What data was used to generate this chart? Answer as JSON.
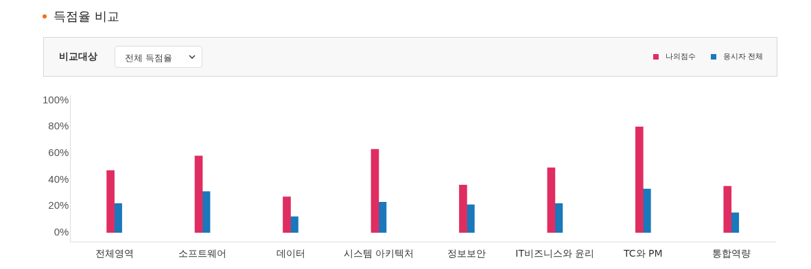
{
  "chart_data": {
    "type": "bar",
    "title": "득점율 비교",
    "annotations": [
      "비교대상",
      "전체 득점율"
    ],
    "categories": [
      "전체영역",
      "소프트웨어",
      "데이터",
      "시스템 아키텍처",
      "정보보안",
      "IT비즈니스와 윤리",
      "TC와 PM",
      "통합역량"
    ],
    "series": [
      {
        "name": "나의점수",
        "color": "#e02d61",
        "values": [
          47,
          58,
          27,
          63,
          36,
          49,
          80,
          35
        ]
      },
      {
        "name": "응시자 전체",
        "color": "#1a78bb",
        "values": [
          22,
          31,
          12,
          23,
          21,
          22,
          33,
          15
        ]
      }
    ],
    "ylim": [
      -7,
      104
    ],
    "yticks": [
      {
        "value": 0,
        "label": "0%"
      },
      {
        "value": 20,
        "label": "20%"
      },
      {
        "value": 40,
        "label": "40%"
      },
      {
        "value": 60,
        "label": "60%"
      },
      {
        "value": 80,
        "label": "80%"
      },
      {
        "value": 100,
        "label": "100%"
      }
    ],
    "grid": false,
    "legend": "top right"
  }
}
